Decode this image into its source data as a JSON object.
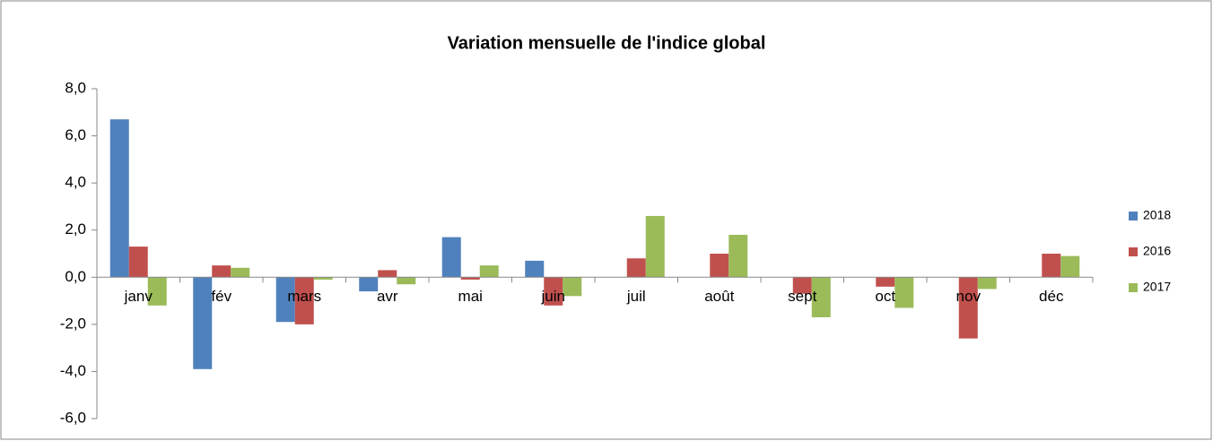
{
  "chart_data": {
    "type": "bar",
    "title": "Variation mensuelle de l'indice global",
    "categories": [
      "janv",
      "fév",
      "mars",
      "avr",
      "mai",
      "juin",
      "juil",
      "août",
      "sept",
      "oct",
      "nov",
      "déc"
    ],
    "series": [
      {
        "name": "2018",
        "color": "#4f81bd",
        "values": [
          6.7,
          -3.9,
          -1.9,
          -0.6,
          1.7,
          0.7,
          null,
          null,
          null,
          null,
          null,
          null
        ]
      },
      {
        "name": "2016",
        "color": "#c0504d",
        "values": [
          1.3,
          0.5,
          -2.0,
          0.3,
          -0.1,
          -1.2,
          0.8,
          1.0,
          -0.7,
          -0.4,
          -2.6,
          1.0
        ]
      },
      {
        "name": "2017",
        "color": "#9bbb59",
        "values": [
          -1.2,
          0.4,
          -0.1,
          -0.3,
          0.5,
          -0.8,
          2.6,
          1.8,
          -1.7,
          -1.3,
          -0.5,
          0.9
        ]
      }
    ],
    "ylim": [
      -6,
      8
    ],
    "yticks": [
      {
        "value": -6,
        "label": "-6,0"
      },
      {
        "value": -4,
        "label": "-4,0"
      },
      {
        "value": -2,
        "label": "-2,0"
      },
      {
        "value": 0,
        "label": "0,0"
      },
      {
        "value": 2,
        "label": "2,0"
      },
      {
        "value": 4,
        "label": "4,0"
      },
      {
        "value": 6,
        "label": "6,0"
      },
      {
        "value": 8,
        "label": "8,0"
      }
    ],
    "legend": "right"
  }
}
